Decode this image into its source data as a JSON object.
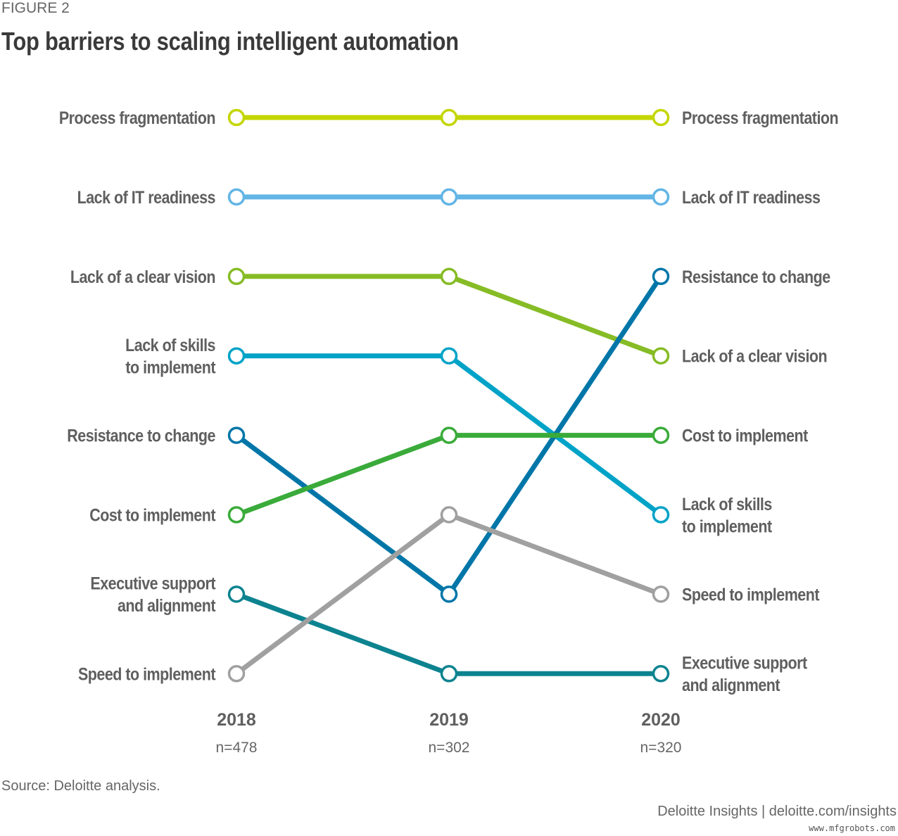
{
  "chart_data": {
    "type": "bump",
    "figure_label": "FIGURE 2",
    "title": "Top barriers to scaling intelligent automation",
    "x": [
      "2018",
      "2019",
      "2020"
    ],
    "x_sublabels": [
      "n=478",
      "n=302",
      "n=320"
    ],
    "y_axis": "rank (1 = top)",
    "series": [
      {
        "name": "Process fragmentation",
        "label_lines": [
          "Process fragmentation"
        ],
        "ranks": [
          1,
          1,
          1
        ],
        "color": "#c4d600"
      },
      {
        "name": "Lack of IT readiness",
        "label_lines": [
          "Lack of IT readiness"
        ],
        "ranks": [
          2,
          2,
          2
        ],
        "color": "#62b5e5"
      },
      {
        "name": "Lack of a clear vision",
        "label_lines": [
          "Lack of a clear vision"
        ],
        "ranks": [
          3,
          3,
          4
        ],
        "color": "#86bc25"
      },
      {
        "name": "Lack of skills to implement",
        "label_lines": [
          "Lack of skills",
          "to implement"
        ],
        "ranks": [
          4,
          4,
          6
        ],
        "color": "#00a3c7"
      },
      {
        "name": "Resistance to change",
        "label_lines": [
          "Resistance to change"
        ],
        "ranks": [
          5,
          7,
          3
        ],
        "color": "#0076a8"
      },
      {
        "name": "Cost to implement",
        "label_lines": [
          "Cost to implement"
        ],
        "ranks": [
          6,
          5,
          5
        ],
        "color": "#3aab3a"
      },
      {
        "name": "Executive support and alignment",
        "label_lines": [
          "Executive support",
          "and alignment"
        ],
        "ranks": [
          7,
          8,
          8
        ],
        "color": "#0d8390"
      },
      {
        "name": "Speed to implement",
        "label_lines": [
          "Speed to implement"
        ],
        "ranks": [
          8,
          6,
          7
        ],
        "color": "#a0a0a0"
      }
    ],
    "source": "Source: Deloitte analysis.",
    "credit": "Deloitte Insights | deloitte.com/insights",
    "watermark": "www.mfgrobots.com"
  }
}
